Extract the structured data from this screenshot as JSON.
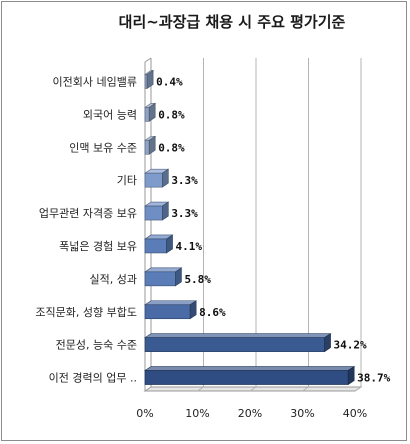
{
  "chart_data": {
    "type": "bar",
    "orientation": "horizontal",
    "title": "대리~과장급 채용 시 주요 평가기준",
    "categories": [
      "이전회사 네임밸류",
      "외국어 능력",
      "인맥 보유 수준",
      "기타",
      "업무관련 자격증 보유",
      "폭넓은 경험 보유",
      "실적, 성과",
      "조직문화, 성향 부합도",
      "전문성, 능숙 수준",
      "이전 경력의 업무 .."
    ],
    "values": [
      0.4,
      0.8,
      0.8,
      3.3,
      3.3,
      4.1,
      5.8,
      8.6,
      34.2,
      38.7
    ],
    "value_labels": [
      "0.4%",
      "0.8%",
      "0.8%",
      "3.3%",
      "3.3%",
      "4.1%",
      "5.8%",
      "8.6%",
      "34.2%",
      "38.7%"
    ],
    "xlim": [
      0,
      40
    ],
    "xticks": [
      0,
      10,
      20,
      30,
      40
    ],
    "xtick_labels": [
      "0%",
      "10%",
      "20%",
      "30%",
      "40%"
    ],
    "grid": true,
    "bar_colors": [
      "#8ea4c6",
      "#8ea4c6",
      "#8ea4c6",
      "#7f9bcb",
      "#6f8fc4",
      "#5a7db8",
      "#5a7db8",
      "#4a6ba6",
      "#3a5a92",
      "#2f4d82"
    ]
  }
}
